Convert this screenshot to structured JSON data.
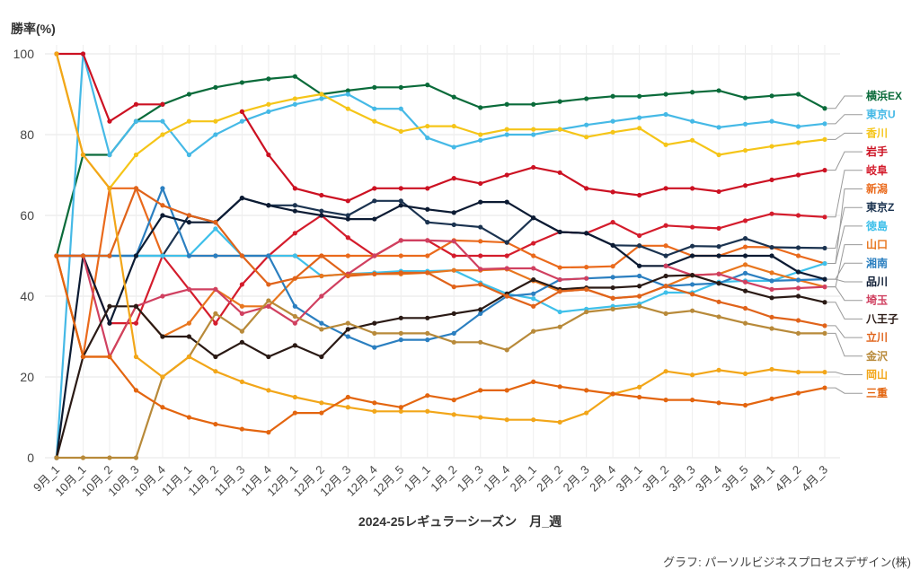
{
  "chart_data": {
    "type": "line",
    "ylabel": "勝率(%)",
    "xlabel": "2024-25レギュラーシーズン　月_週",
    "source": "グラフ: パーソルビジネスプロセスデザイン(株)",
    "ylim": [
      0,
      100
    ],
    "yticks": [
      0,
      20,
      40,
      60,
      80,
      100
    ],
    "grid": true,
    "x": [
      "9月_1",
      "10月_1",
      "10月_2",
      "10月_3",
      "10月_4",
      "11月_1",
      "11月_2",
      "11月_3",
      "11月_4",
      "12月_1",
      "12月_2",
      "12月_3",
      "12月_4",
      "12月_5",
      "1月_1",
      "1月_2",
      "1月_3",
      "1月_4",
      "2月_1",
      "2月_2",
      "2月_3",
      "2月_4",
      "3月_1",
      "3月_2",
      "3月_3",
      "3月_4",
      "3月_5",
      "4月_1",
      "4月_2",
      "4月_3"
    ],
    "series": [
      {
        "name": "横浜EX",
        "color": "#0a6b3a",
        "values": [
          50,
          75,
          75,
          83.3,
          87.5,
          90,
          91.7,
          92.9,
          93.8,
          94.4,
          90,
          90.9,
          91.7,
          91.7,
          92.3,
          89.3,
          86.7,
          87.5,
          87.5,
          88.2,
          88.9,
          89.5,
          89.5,
          90,
          90.5,
          90.9,
          89.1,
          89.6,
          90,
          86.5
        ]
      },
      {
        "name": "東京U",
        "color": "#45b9e6",
        "values": [
          0,
          100,
          75,
          83.3,
          83.3,
          75,
          80,
          83.3,
          85.7,
          87.5,
          88.9,
          90,
          86.4,
          86.4,
          79.2,
          76.9,
          78.6,
          80,
          80,
          81.3,
          82.4,
          83.3,
          84.2,
          85,
          83.3,
          81.8,
          82.6,
          83.3,
          82,
          82.7
        ]
      },
      {
        "name": "香川",
        "color": "#f5c518",
        "values": [
          100,
          75,
          66.7,
          75,
          80,
          83.3,
          83.3,
          85.7,
          87.5,
          88.9,
          90,
          86.4,
          83.3,
          80.8,
          82.1,
          82.1,
          80,
          81.3,
          81.3,
          81.3,
          79.4,
          80.6,
          81.6,
          77.5,
          78.6,
          75,
          76.1,
          77.1,
          78,
          78.8
        ]
      },
      {
        "name": "岩手",
        "color": "#cc1122",
        "values": [
          100,
          100,
          83.3,
          87.5,
          87.5,
          null,
          null,
          85.7,
          75,
          66.7,
          65,
          63.6,
          66.7,
          66.7,
          66.7,
          69.2,
          67.9,
          70,
          71.9,
          70.6,
          66.7,
          65.8,
          65,
          66.7,
          66.7,
          65.9,
          67.4,
          68.8,
          70,
          71.2
        ]
      },
      {
        "name": "岐阜",
        "color": "#d41c2c",
        "values": [
          50,
          50,
          33.3,
          33.3,
          50,
          41.7,
          33.3,
          42.9,
          50,
          55.6,
          60,
          54.5,
          50,
          53.8,
          53.8,
          50,
          50,
          50,
          53.1,
          55.9,
          55.6,
          58.3,
          55,
          57.5,
          57.1,
          56.8,
          58.7,
          60.4,
          60,
          59.6
        ]
      },
      {
        "name": "新潟",
        "color": "#ea6a1c",
        "values": [
          50,
          25,
          66.7,
          66.7,
          50,
          50,
          50,
          50,
          50,
          50,
          50,
          50,
          50,
          50,
          50,
          53.8,
          53.6,
          53.3,
          50,
          47.1,
          47.2,
          47.4,
          52.5,
          52.5,
          50,
          50,
          52.2,
          52.1,
          50,
          48.1
        ]
      },
      {
        "name": "東京Z",
        "color": "#1b3350",
        "values": [
          50,
          50,
          50,
          50,
          50,
          60,
          58.3,
          64.3,
          62.5,
          62.5,
          61.1,
          60,
          63.6,
          63.6,
          58.3,
          57.7,
          57.1,
          53.3,
          59.4,
          55.9,
          55.6,
          52.6,
          52.5,
          50,
          52.4,
          52.3,
          54.3,
          52.1,
          52,
          51.9
        ]
      },
      {
        "name": "徳島",
        "color": "#3fc0ea",
        "values": [
          50,
          50,
          50,
          50,
          50,
          50,
          56.7,
          50,
          50,
          50,
          45,
          45.5,
          45.8,
          46.2,
          46.2,
          46.4,
          43.3,
          40.6,
          39.4,
          36.1,
          36.8,
          37.5,
          38.1,
          40.9,
          40.9,
          43.5,
          43.8,
          43.8,
          46,
          48.1
        ]
      },
      {
        "name": "山口",
        "color": "#e8761e",
        "values": [
          50,
          25,
          25,
          37.5,
          30,
          33.3,
          41.7,
          37.5,
          37.5,
          44.4,
          45,
          45.5,
          45.5,
          45.5,
          45.8,
          46.4,
          46.4,
          46.7,
          43.8,
          41.2,
          41.7,
          39.5,
          40,
          42.5,
          45.2,
          45.5,
          47.8,
          45.8,
          44,
          42.3
        ]
      },
      {
        "name": "湘南",
        "color": "#2b7fc0",
        "values": [
          50,
          50,
          50,
          50,
          66.7,
          50,
          50,
          50,
          50,
          37.5,
          33.3,
          30,
          27.3,
          29.2,
          29.2,
          30.8,
          35.7,
          40,
          40.6,
          44.1,
          44.4,
          44.7,
          45,
          42.5,
          42.9,
          43.2,
          45.7,
          43.8,
          44,
          44.2
        ]
      },
      {
        "name": "品川",
        "color": "#0c1b33",
        "values": [
          0,
          50,
          33.3,
          50,
          60,
          58.3,
          58.3,
          64.3,
          62.5,
          61.1,
          60,
          59.1,
          59.1,
          62.5,
          61.5,
          60.7,
          63.3,
          63.3,
          59.4,
          55.9,
          55.6,
          52.6,
          47.5,
          47.5,
          50,
          50,
          50,
          50,
          46,
          44.2
        ]
      },
      {
        "name": "埼玉",
        "color": "#d04060",
        "values": [
          50,
          50,
          25,
          37.5,
          40,
          41.7,
          41.7,
          35.7,
          37.5,
          33.3,
          40,
          45.5,
          50,
          53.8,
          53.8,
          53.6,
          46.7,
          46.9,
          46.9,
          44.1,
          44.4,
          null,
          null,
          47.5,
          45.2,
          45.5,
          43.5,
          41.7,
          42,
          42.3
        ]
      },
      {
        "name": "八王子",
        "color": "#2a1a15",
        "values": [
          0,
          25,
          37.5,
          37.5,
          30,
          30,
          25,
          28.6,
          25,
          27.8,
          25,
          31.8,
          33.3,
          34.6,
          34.6,
          35.7,
          36.7,
          40.6,
          44.1,
          41.7,
          42.1,
          42.1,
          42.5,
          45,
          45.2,
          43.2,
          41.3,
          39.6,
          40,
          38.5
        ]
      },
      {
        "name": "立川",
        "color": "#e0631a",
        "values": [
          50,
          50,
          50,
          66.7,
          62.5,
          60,
          58.3,
          50,
          42.9,
          44.4,
          50,
          45,
          45.5,
          45.8,
          45.8,
          42.3,
          42.9,
          40,
          37.5,
          41.2,
          41.7,
          39.5,
          40,
          42.5,
          40.5,
          38.6,
          37,
          34.8,
          34,
          32.7
        ]
      },
      {
        "name": "金沢",
        "color": "#b88a3a",
        "values": [
          0,
          0,
          0,
          0,
          20,
          25,
          35.7,
          31.3,
          38.9,
          35,
          31.8,
          33.3,
          30.8,
          30.8,
          30.8,
          28.6,
          28.6,
          26.7,
          31.3,
          32.4,
          36.1,
          36.8,
          37.5,
          35.7,
          36.4,
          34.9,
          33.3,
          32,
          30.8,
          30.8
        ]
      },
      {
        "name": "岡山",
        "color": "#f2a619",
        "values": [
          100,
          75,
          66.7,
          25,
          20,
          25,
          21.4,
          18.8,
          16.7,
          15,
          13.6,
          12.5,
          11.5,
          11.5,
          11.5,
          10.7,
          10,
          9.4,
          9.4,
          8.8,
          11.1,
          15.8,
          17.5,
          21.4,
          20.5,
          21.7,
          20.8,
          21.9,
          21.2,
          21.2
        ]
      },
      {
        "name": "三重",
        "color": "#e3650f",
        "values": [
          50,
          25,
          25,
          16.7,
          12.5,
          10,
          8.3,
          7.1,
          6.3,
          11.1,
          11.1,
          15,
          13.6,
          12.5,
          15.4,
          14.3,
          16.7,
          16.7,
          18.8,
          17.6,
          16.7,
          15.8,
          15,
          14.3,
          14.3,
          13.6,
          13,
          14.6,
          16,
          17.3
        ]
      }
    ],
    "legend_order": [
      "横浜EX",
      "東京U",
      "香川",
      "岩手",
      "岐阜",
      "新潟",
      "東京Z",
      "徳島",
      "山口",
      "湘南",
      "品川",
      "埼玉",
      "八王子",
      "立川",
      "金沢",
      "岡山",
      "三重"
    ]
  }
}
